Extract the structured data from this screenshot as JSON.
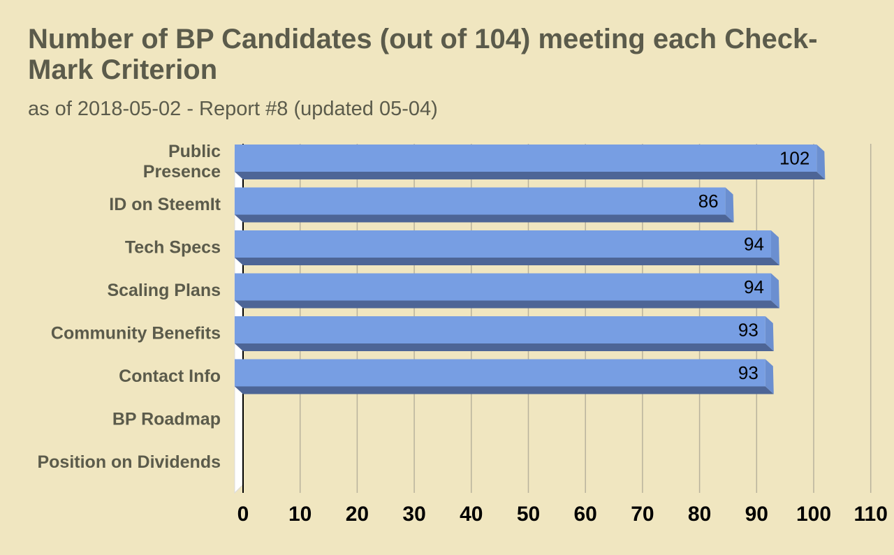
{
  "chart_data": {
    "type": "bar",
    "orientation": "horizontal",
    "title": "Number of BP Candidates (out of 104) meeting each Check-Mark Criterion",
    "subtitle": "as of 2018-05-02 - Report #8 (updated 05-04)",
    "xlabel": "",
    "ylabel": "",
    "categories": [
      [
        "Public",
        "Presence"
      ],
      [
        "ID on SteemIt"
      ],
      [
        "Tech Specs"
      ],
      [
        "Scaling Plans"
      ],
      [
        "Community Benefits"
      ],
      [
        "Contact Info"
      ],
      [
        "BP Roadmap"
      ],
      [
        "Position on Dividends"
      ]
    ],
    "values": [
      102,
      86,
      94,
      94,
      93,
      93,
      null,
      null
    ],
    "value_labels": [
      "102",
      "86",
      "94",
      "94",
      "93",
      "93",
      "",
      ""
    ],
    "xlim": [
      0,
      110
    ],
    "xticks": [
      0,
      10,
      20,
      30,
      40,
      50,
      60,
      70,
      80,
      90,
      100,
      110
    ],
    "grid": "vertical",
    "legend": "none",
    "style": "3d",
    "colors": {
      "background": "#f0e6c0",
      "bar_front": "#779ee3",
      "bar_bottom": "#4d6596",
      "bar_side": "#6b8fd0",
      "gridline": "#b8b29c",
      "wall": "#ffffff",
      "title_text": "#5b5b4b",
      "axis_text": "#000000"
    }
  }
}
